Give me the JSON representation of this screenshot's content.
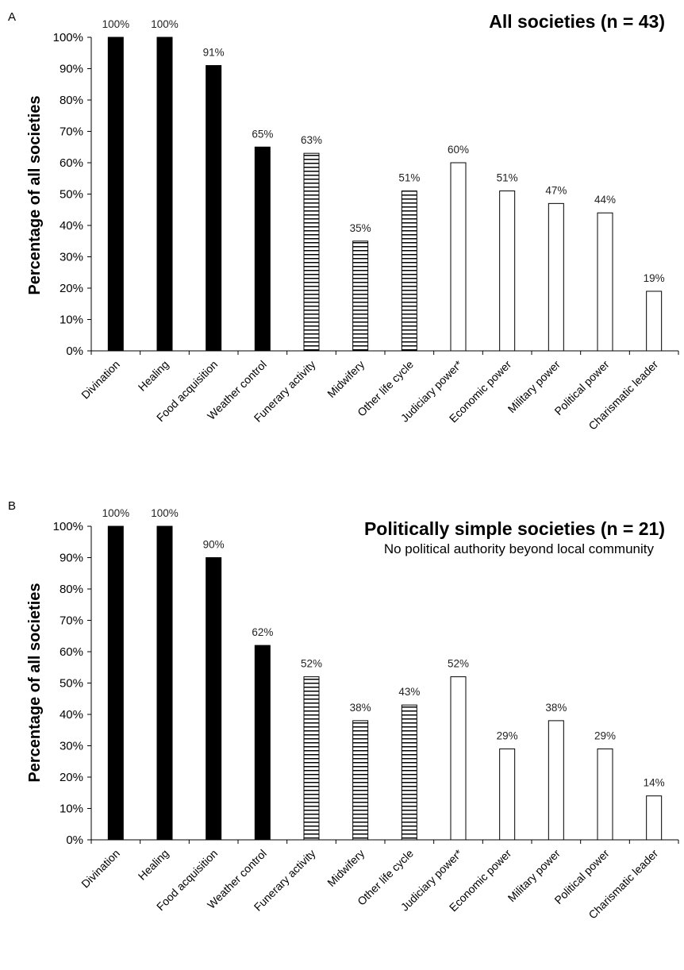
{
  "chart_data": [
    {
      "panel": "A",
      "type": "bar",
      "title": "All societies (n = 43)",
      "subtitle": "",
      "xlabel": "",
      "ylabel": "Percentage of all societies",
      "ylim": [
        0,
        100
      ],
      "yticks": [
        "0%",
        "10%",
        "20%",
        "30%",
        "40%",
        "50%",
        "60%",
        "70%",
        "80%",
        "90%",
        "100%"
      ],
      "grid": false,
      "categories": [
        "Divination",
        "Healing",
        "Food acquisition",
        "Weather control",
        "Funerary activity",
        "Midwifery",
        "Other life cycle",
        "Judiciary power*",
        "Economic power",
        "Military power",
        "Political power",
        "Charismatic leader"
      ],
      "values": [
        100,
        100,
        91,
        65,
        63,
        35,
        51,
        60,
        51,
        47,
        44,
        19
      ],
      "value_labels": [
        "100%",
        "100%",
        "91%",
        "65%",
        "63%",
        "35%",
        "51%",
        "60%",
        "51%",
        "47%",
        "44%",
        "19%"
      ],
      "fills": [
        "solid",
        "solid",
        "solid",
        "solid",
        "striped",
        "striped",
        "striped",
        "open",
        "open",
        "open",
        "open",
        "open"
      ]
    },
    {
      "panel": "B",
      "type": "bar",
      "title": "Politically simple societies (n = 21)",
      "subtitle": "No political authority beyond local community",
      "xlabel": "",
      "ylabel": "Percentage of all societies",
      "ylim": [
        0,
        100
      ],
      "yticks": [
        "0%",
        "10%",
        "20%",
        "30%",
        "40%",
        "50%",
        "60%",
        "70%",
        "80%",
        "90%",
        "100%"
      ],
      "grid": false,
      "categories": [
        "Divination",
        "Healing",
        "Food acquisition",
        "Weather control",
        "Funerary activity",
        "Midwifery",
        "Other life cycle",
        "Judiciary power*",
        "Economic power",
        "Military power",
        "Political power",
        "Charismatic leader"
      ],
      "values": [
        100,
        100,
        90,
        62,
        52,
        38,
        43,
        52,
        29,
        38,
        29,
        14
      ],
      "value_labels": [
        "100%",
        "100%",
        "90%",
        "62%",
        "52%",
        "38%",
        "43%",
        "52%",
        "29%",
        "38%",
        "29%",
        "14%"
      ],
      "fills": [
        "solid",
        "solid",
        "solid",
        "solid",
        "striped",
        "striped",
        "striped",
        "open",
        "open",
        "open",
        "open",
        "open"
      ]
    }
  ],
  "colors": {
    "solid": "#000000",
    "stroke": "#000000",
    "open": "#ffffff"
  }
}
